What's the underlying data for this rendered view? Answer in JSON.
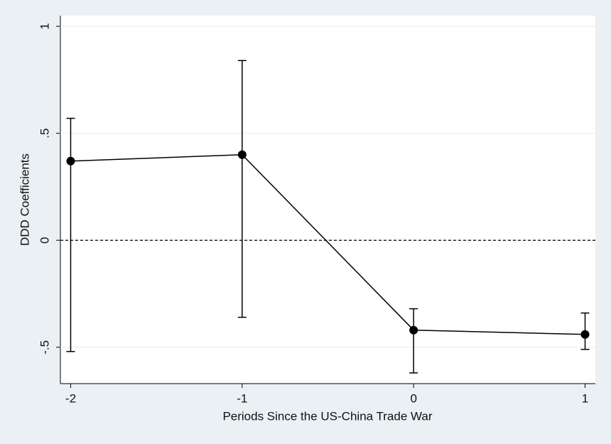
{
  "chart_data": {
    "type": "line",
    "x_label": "Periods Since the US-China Trade War",
    "y_label": "DDD Coefficients",
    "x": [
      -2,
      -1,
      0,
      1
    ],
    "series": [
      {
        "color": "#000000",
        "values": [
          0.37,
          0.4,
          -0.42,
          -0.44
        ],
        "lower": [
          -0.52,
          -0.36,
          -0.62,
          -0.51
        ],
        "upper": [
          0.57,
          0.84,
          -0.32,
          -0.34
        ]
      }
    ],
    "xlim": [
      -2.06,
      1.06
    ],
    "xticks": [
      -2,
      -1,
      0,
      1
    ],
    "ylim": [
      -0.67,
      1.05
    ],
    "yticks": [
      {
        "value": -0.5,
        "label": "-.5"
      },
      0,
      {
        "value": 0.5,
        "label": ".5"
      },
      1
    ],
    "grid": true,
    "reference_line": 0
  }
}
